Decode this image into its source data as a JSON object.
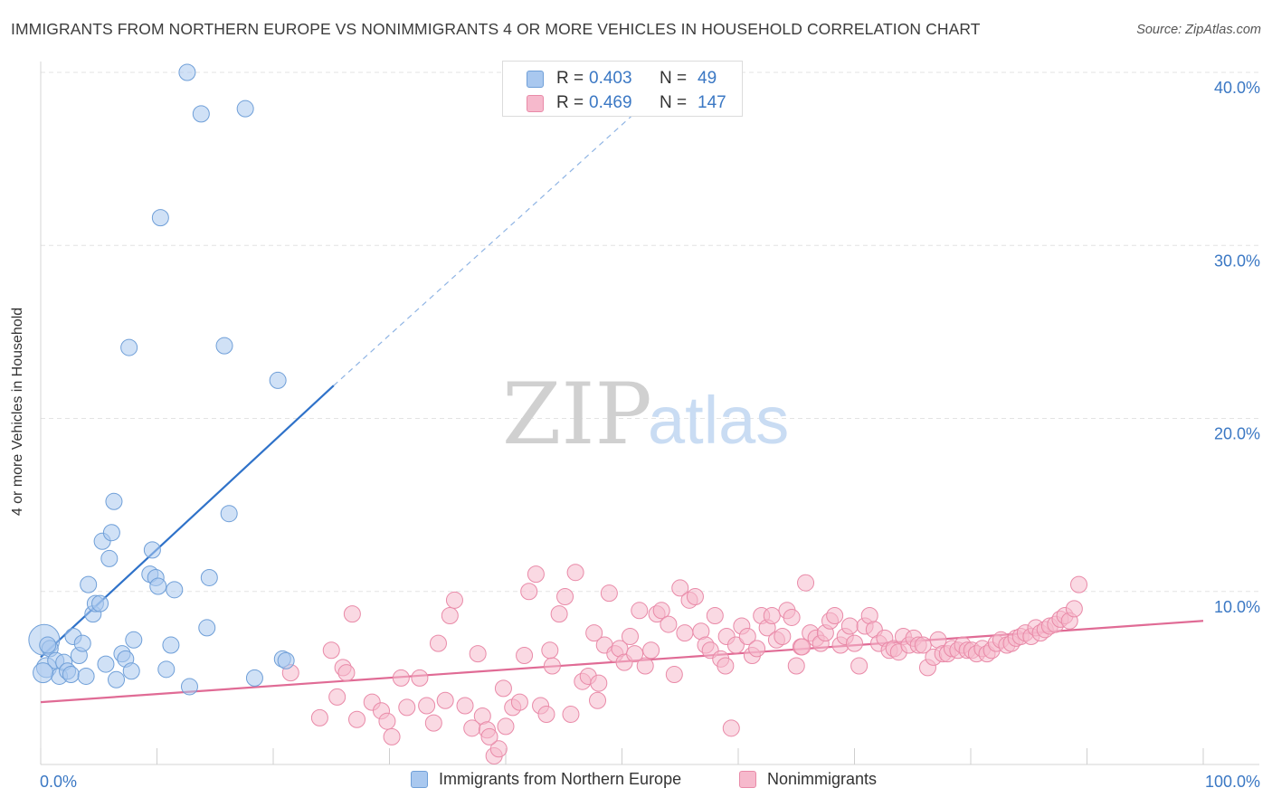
{
  "title": "IMMIGRANTS FROM NORTHERN EUROPE VS NONIMMIGRANTS 4 OR MORE VEHICLES IN HOUSEHOLD CORRELATION CHART",
  "source": "Source: ZipAtlas.com",
  "watermark": {
    "zip": "ZIP",
    "atlas": "atlas"
  },
  "legend_stats": [
    {
      "r_label": "R =",
      "r_value": "0.403",
      "n_label": "N =",
      "n_value": "49",
      "color": "#a9c8ef"
    },
    {
      "r_label": "R =",
      "r_value": "0.469",
      "n_label": "N =",
      "n_value": "147",
      "color": "#f6b9cc"
    }
  ],
  "chart_data": {
    "type": "scatter",
    "title": "IMMIGRANTS FROM NORTHERN EUROPE VS NONIMMIGRANTS 4 OR MORE VEHICLES IN HOUSEHOLD CORRELATION CHART",
    "xlabel": "",
    "ylabel": "4 or more Vehicles in Household",
    "xlim": [
      0,
      100
    ],
    "ylim": [
      0,
      40
    ],
    "x_tick_labels": [
      "0.0%",
      "100.0%"
    ],
    "y_ticks": [
      10,
      20,
      30,
      40
    ],
    "y_tick_labels": [
      "10.0%",
      "20.0%",
      "30.0%",
      "40.0%"
    ],
    "grid": "horizontal dashed",
    "legend": "bottom",
    "series": [
      {
        "name": "Immigrants from Northern Europe",
        "color": "#a9c8ef",
        "stroke": "#6f9fd8",
        "trend": {
          "x": [
            0,
            25.2
          ],
          "y": [
            6.2,
            21.9
          ],
          "color": "#2f72c9",
          "dashed_extension_to": [
            100,
            68.6
          ]
        },
        "points": [
          [
            0.3,
            7.2
          ],
          [
            0.5,
            5.6
          ],
          [
            0.8,
            6.7
          ],
          [
            1.3,
            6.0
          ],
          [
            1.6,
            5.1
          ],
          [
            2.0,
            5.9
          ],
          [
            2.3,
            5.4
          ],
          [
            2.6,
            5.2
          ],
          [
            2.8,
            7.4
          ],
          [
            3.3,
            6.3
          ],
          [
            3.6,
            7.0
          ],
          [
            3.9,
            5.1
          ],
          [
            4.1,
            10.4
          ],
          [
            4.5,
            8.7
          ],
          [
            4.7,
            9.3
          ],
          [
            5.1,
            9.3
          ],
          [
            5.3,
            12.9
          ],
          [
            5.6,
            5.8
          ],
          [
            5.9,
            11.9
          ],
          [
            6.1,
            13.4
          ],
          [
            6.3,
            15.2
          ],
          [
            6.5,
            4.9
          ],
          [
            7.0,
            6.4
          ],
          [
            7.3,
            6.1
          ],
          [
            7.6,
            24.1
          ],
          [
            7.8,
            5.4
          ],
          [
            8.0,
            7.2
          ],
          [
            9.4,
            11.0
          ],
          [
            9.6,
            12.4
          ],
          [
            9.9,
            10.8
          ],
          [
            10.1,
            10.3
          ],
          [
            10.3,
            31.6
          ],
          [
            10.8,
            5.5
          ],
          [
            11.2,
            6.9
          ],
          [
            11.5,
            10.1
          ],
          [
            12.6,
            40.0
          ],
          [
            12.8,
            4.5
          ],
          [
            13.8,
            37.6
          ],
          [
            14.3,
            7.9
          ],
          [
            14.5,
            10.8
          ],
          [
            15.8,
            24.2
          ],
          [
            16.2,
            14.5
          ],
          [
            17.6,
            37.9
          ],
          [
            18.4,
            5.0
          ],
          [
            20.4,
            22.2
          ],
          [
            20.8,
            6.1
          ],
          [
            21.1,
            6.0
          ],
          [
            0.2,
            5.3
          ],
          [
            0.6,
            6.9
          ]
        ]
      },
      {
        "name": "Nonimmigrants",
        "color": "#f6b9cc",
        "stroke": "#e98aa8",
        "trend": {
          "x": [
            0,
            100
          ],
          "y": [
            3.6,
            8.3
          ],
          "color": "#e06b95"
        },
        "points": [
          [
            21.5,
            5.3
          ],
          [
            24.0,
            2.7
          ],
          [
            25.0,
            6.6
          ],
          [
            25.5,
            3.9
          ],
          [
            26.0,
            5.6
          ],
          [
            26.3,
            5.3
          ],
          [
            26.8,
            8.7
          ],
          [
            27.2,
            2.6
          ],
          [
            28.5,
            3.6
          ],
          [
            29.3,
            3.1
          ],
          [
            29.8,
            2.5
          ],
          [
            30.2,
            1.6
          ],
          [
            31.0,
            5.0
          ],
          [
            31.5,
            3.3
          ],
          [
            32.6,
            5.0
          ],
          [
            33.2,
            3.4
          ],
          [
            33.8,
            2.4
          ],
          [
            34.2,
            7.0
          ],
          [
            34.8,
            3.7
          ],
          [
            35.2,
            8.6
          ],
          [
            35.6,
            9.5
          ],
          [
            36.5,
            3.4
          ],
          [
            37.1,
            2.1
          ],
          [
            37.6,
            6.4
          ],
          [
            38.0,
            2.8
          ],
          [
            38.4,
            2.0
          ],
          [
            39.0,
            0.5
          ],
          [
            39.4,
            0.9
          ],
          [
            39.8,
            4.4
          ],
          [
            40.0,
            2.2
          ],
          [
            40.6,
            3.3
          ],
          [
            41.2,
            3.6
          ],
          [
            41.6,
            6.3
          ],
          [
            42.0,
            10.0
          ],
          [
            42.6,
            11.0
          ],
          [
            43.0,
            3.4
          ],
          [
            43.5,
            2.9
          ],
          [
            44.0,
            5.7
          ],
          [
            44.6,
            8.7
          ],
          [
            45.1,
            9.7
          ],
          [
            45.6,
            2.9
          ],
          [
            46.0,
            11.1
          ],
          [
            46.6,
            4.8
          ],
          [
            47.1,
            5.1
          ],
          [
            47.6,
            7.6
          ],
          [
            48.0,
            4.7
          ],
          [
            48.5,
            6.9
          ],
          [
            48.9,
            9.9
          ],
          [
            49.4,
            6.4
          ],
          [
            49.8,
            6.7
          ],
          [
            50.2,
            5.9
          ],
          [
            50.7,
            7.4
          ],
          [
            51.1,
            6.4
          ],
          [
            51.5,
            8.9
          ],
          [
            52.0,
            5.7
          ],
          [
            52.5,
            6.6
          ],
          [
            53.0,
            8.7
          ],
          [
            53.4,
            8.9
          ],
          [
            54.0,
            8.1
          ],
          [
            54.5,
            5.2
          ],
          [
            55.0,
            10.2
          ],
          [
            55.4,
            7.6
          ],
          [
            55.8,
            9.5
          ],
          [
            56.3,
            9.7
          ],
          [
            56.8,
            7.7
          ],
          [
            57.2,
            6.9
          ],
          [
            57.6,
            6.6
          ],
          [
            58.0,
            8.6
          ],
          [
            58.5,
            6.1
          ],
          [
            59.0,
            7.4
          ],
          [
            59.4,
            2.1
          ],
          [
            59.8,
            6.9
          ],
          [
            60.3,
            8.0
          ],
          [
            60.8,
            7.4
          ],
          [
            61.2,
            6.3
          ],
          [
            61.6,
            6.7
          ],
          [
            62.0,
            8.6
          ],
          [
            62.5,
            7.9
          ],
          [
            62.9,
            8.6
          ],
          [
            63.3,
            7.2
          ],
          [
            63.8,
            7.4
          ],
          [
            64.2,
            8.9
          ],
          [
            64.6,
            8.5
          ],
          [
            65.0,
            5.7
          ],
          [
            65.4,
            6.8
          ],
          [
            65.8,
            10.5
          ],
          [
            66.2,
            7.6
          ],
          [
            66.7,
            7.3
          ],
          [
            67.1,
            7.0
          ],
          [
            67.5,
            7.6
          ],
          [
            67.9,
            8.3
          ],
          [
            68.3,
            8.6
          ],
          [
            68.8,
            6.9
          ],
          [
            69.2,
            7.4
          ],
          [
            69.6,
            8.0
          ],
          [
            70.0,
            7.0
          ],
          [
            70.4,
            5.7
          ],
          [
            70.9,
            8.0
          ],
          [
            71.3,
            8.6
          ],
          [
            71.7,
            7.8
          ],
          [
            72.1,
            7.0
          ],
          [
            72.6,
            7.3
          ],
          [
            73.0,
            6.6
          ],
          [
            73.4,
            6.7
          ],
          [
            73.8,
            6.5
          ],
          [
            74.2,
            7.4
          ],
          [
            74.7,
            6.9
          ],
          [
            75.1,
            7.3
          ],
          [
            75.5,
            6.9
          ],
          [
            75.9,
            6.9
          ],
          [
            76.3,
            5.6
          ],
          [
            76.8,
            6.2
          ],
          [
            77.2,
            7.2
          ],
          [
            77.6,
            6.4
          ],
          [
            78.0,
            6.4
          ],
          [
            78.4,
            6.7
          ],
          [
            78.9,
            6.6
          ],
          [
            79.3,
            6.9
          ],
          [
            79.7,
            6.6
          ],
          [
            80.1,
            6.6
          ],
          [
            80.5,
            6.4
          ],
          [
            81.0,
            6.7
          ],
          [
            81.4,
            6.4
          ],
          [
            81.8,
            6.6
          ],
          [
            82.2,
            7.0
          ],
          [
            82.6,
            7.2
          ],
          [
            83.1,
            6.9
          ],
          [
            83.5,
            7.0
          ],
          [
            83.9,
            7.3
          ],
          [
            84.3,
            7.4
          ],
          [
            84.7,
            7.6
          ],
          [
            85.2,
            7.4
          ],
          [
            85.6,
            7.9
          ],
          [
            86.0,
            7.6
          ],
          [
            86.4,
            7.8
          ],
          [
            86.8,
            8.0
          ],
          [
            87.3,
            8.1
          ],
          [
            87.7,
            8.4
          ],
          [
            88.1,
            8.6
          ],
          [
            88.5,
            8.3
          ],
          [
            88.9,
            9.0
          ],
          [
            89.3,
            10.4
          ],
          [
            43.8,
            6.6
          ],
          [
            38.6,
            1.6
          ],
          [
            47.9,
            3.7
          ],
          [
            58.9,
            5.7
          ],
          [
            65.5,
            6.8
          ]
        ]
      }
    ]
  }
}
